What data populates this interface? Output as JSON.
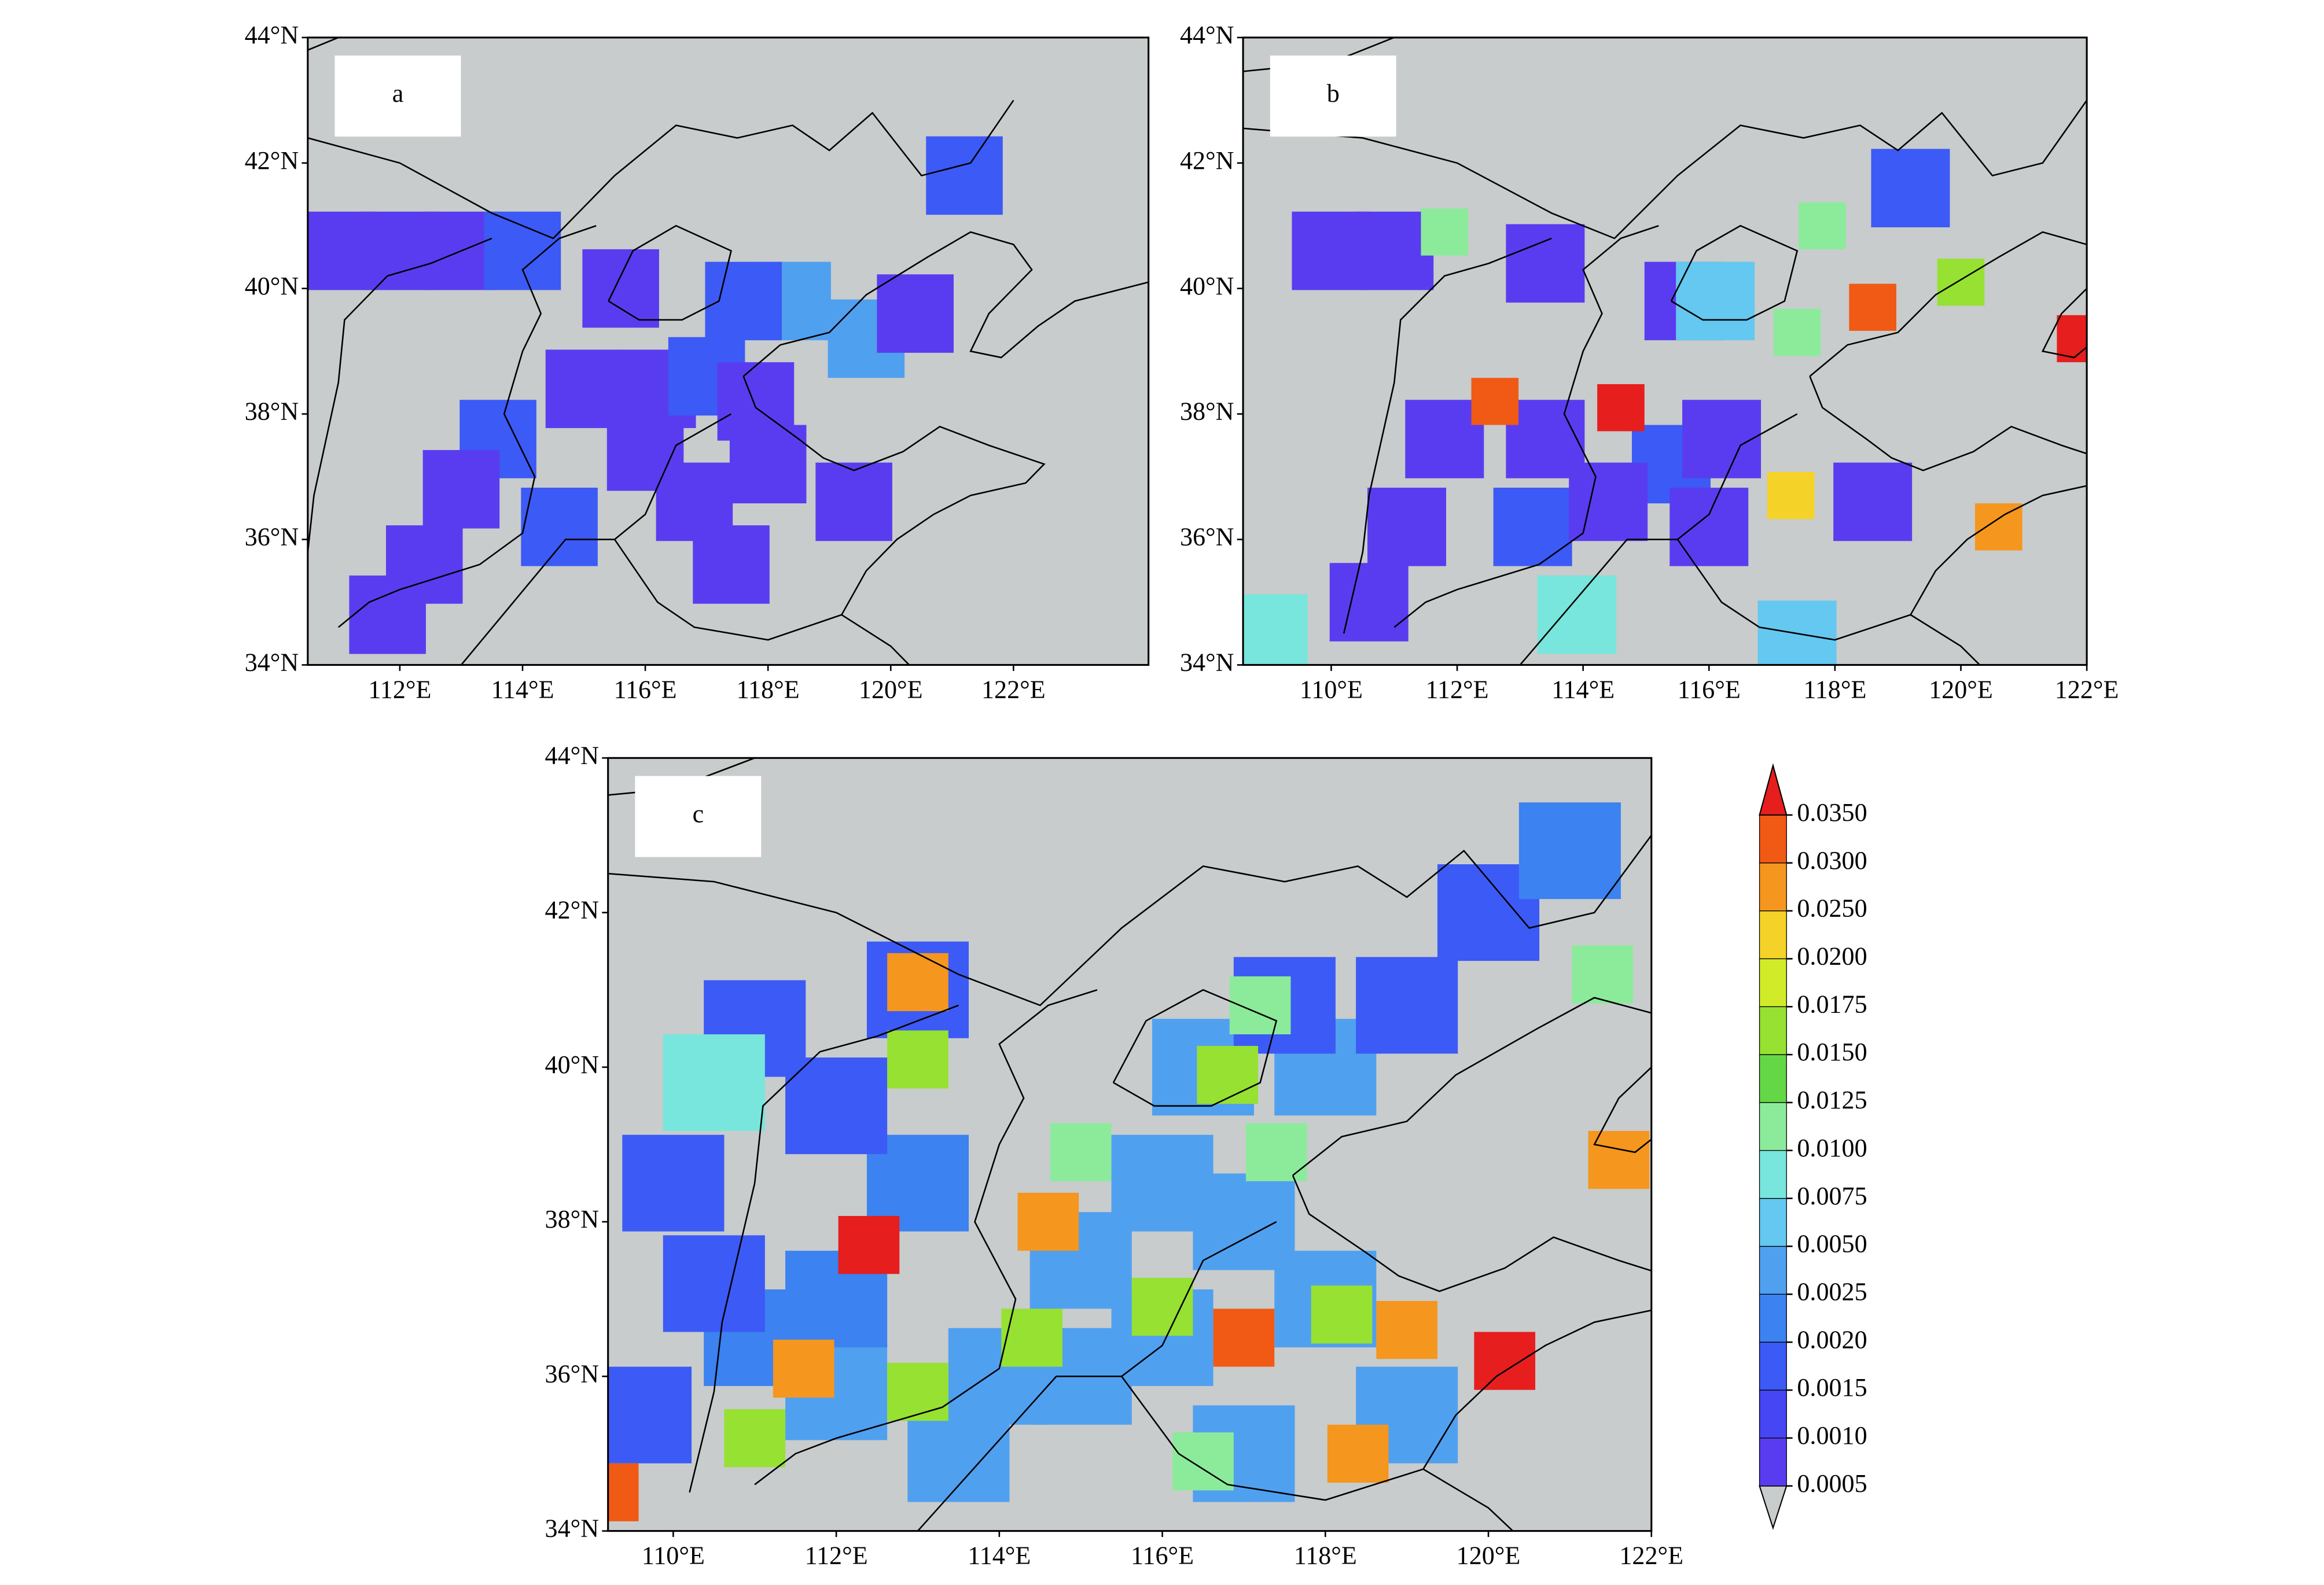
{
  "panels": [
    {
      "label": "a",
      "xlim": [
        110.5,
        124.2
      ],
      "ylim": [
        34,
        44
      ],
      "xticks": [
        {
          "value": 112,
          "label": "112°E"
        },
        {
          "value": 114,
          "label": "114°E"
        },
        {
          "value": 116,
          "label": "116°E"
        },
        {
          "value": 118,
          "label": "118°E"
        },
        {
          "value": 120,
          "label": "120°E"
        },
        {
          "value": 122,
          "label": "122°E"
        }
      ],
      "yticks": [
        {
          "value": 34,
          "label": "34°N"
        },
        {
          "value": 36,
          "label": "36°N"
        },
        {
          "value": 38,
          "label": "38°N"
        },
        {
          "value": 40,
          "label": "40°N"
        },
        {
          "value": 42,
          "label": "42°N"
        },
        {
          "value": 44,
          "label": "44°N"
        }
      ],
      "cells": [
        [
          111,
          40.6,
          0.0008
        ],
        [
          112,
          40.6,
          0.0008
        ],
        [
          113,
          40.6,
          0.0008
        ],
        [
          114,
          40.6,
          0.0015
        ],
        [
          115.6,
          40,
          0.0008
        ],
        [
          113.6,
          37.6,
          0.0015
        ],
        [
          113,
          36.8,
          0.0008
        ],
        [
          112.4,
          35.6,
          0.0008
        ],
        [
          111.8,
          34.8,
          0.0008
        ],
        [
          114.6,
          36.2,
          0.0015
        ],
        [
          116,
          37.4,
          0.0008
        ],
        [
          116.2,
          38.4,
          0.0008
        ],
        [
          117,
          38.6,
          0.0015
        ],
        [
          117.8,
          38.2,
          0.0008
        ],
        [
          116.8,
          36.6,
          0.0008
        ],
        [
          118,
          37.2,
          0.0008
        ],
        [
          119.4,
          36.6,
          0.0008
        ],
        [
          117.4,
          35.6,
          0.0008
        ],
        [
          118.4,
          39.8,
          0.004
        ],
        [
          117.6,
          39.8,
          0.0015
        ],
        [
          119.6,
          39.2,
          0.0025
        ],
        [
          120.4,
          39.6,
          0.0008
        ],
        [
          121.2,
          41.8,
          0.0015
        ],
        [
          115,
          38.4,
          0.0008
        ]
      ]
    },
    {
      "label": "b",
      "xlim": [
        108.6,
        122
      ],
      "ylim": [
        34,
        44
      ],
      "xticks": [
        {
          "value": 110,
          "label": "110°E"
        },
        {
          "value": 112,
          "label": "112°E"
        },
        {
          "value": 114,
          "label": "114°E"
        },
        {
          "value": 116,
          "label": "116°E"
        },
        {
          "value": 118,
          "label": "118°E"
        },
        {
          "value": 120,
          "label": "120°E"
        },
        {
          "value": 122,
          "label": "122°E"
        }
      ],
      "yticks": [
        {
          "value": 34,
          "label": "34°N"
        },
        {
          "value": 36,
          "label": "36°N"
        },
        {
          "value": 38,
          "label": "38°N"
        },
        {
          "value": 40,
          "label": "40°N"
        },
        {
          "value": 42,
          "label": "42°N"
        },
        {
          "value": 44,
          "label": "44°N"
        }
      ],
      "cells": [
        [
          110,
          40.6,
          0.0008
        ],
        [
          111,
          40.6,
          0.0008
        ],
        [
          113.4,
          40.4,
          0.0008
        ],
        [
          115.6,
          39.8,
          0.0008
        ],
        [
          111.8,
          37.6,
          0.0008
        ],
        [
          113.4,
          37.6,
          0.0008
        ],
        [
          111.2,
          36.2,
          0.0008
        ],
        [
          110.6,
          35,
          0.0008
        ],
        [
          113.2,
          36.2,
          0.0015
        ],
        [
          115.4,
          37.2,
          0.0015
        ],
        [
          114.4,
          36.6,
          0.0008
        ],
        [
          116.2,
          37.6,
          0.0008
        ],
        [
          118.6,
          36.6,
          0.0008
        ],
        [
          116,
          36.2,
          0.0008
        ],
        [
          119.2,
          41.6,
          0.0015
        ],
        [
          116.1,
          39.8,
          0.006
        ],
        [
          111.8,
          40.9,
          0.012
        ],
        [
          112.6,
          38.2,
          0.03
        ],
        [
          114.6,
          38.1,
          0.035
        ],
        [
          117.4,
          39.3,
          0.01
        ],
        [
          118.6,
          39.7,
          0.03
        ],
        [
          117.8,
          41,
          0.01
        ],
        [
          120,
          40.1,
          0.015
        ],
        [
          121.9,
          39.2,
          0.035
        ],
        [
          117.3,
          36.7,
          0.02
        ],
        [
          120.6,
          36.2,
          0.025
        ],
        [
          113.9,
          34.8,
          0.008
        ],
        [
          117.4,
          34.4,
          0.006
        ],
        [
          109,
          34.5,
          0.008
        ]
      ]
    },
    {
      "label": "c",
      "xlim": [
        109.2,
        122
      ],
      "ylim": [
        34,
        44
      ],
      "xticks": [
        {
          "value": 110,
          "label": "110°E"
        },
        {
          "value": 112,
          "label": "112°E"
        },
        {
          "value": 114,
          "label": "114°E"
        },
        {
          "value": 116,
          "label": "116°E"
        },
        {
          "value": 118,
          "label": "118°E"
        },
        {
          "value": 120,
          "label": "120°E"
        },
        {
          "value": 122,
          "label": "122°E"
        }
      ],
      "yticks": [
        {
          "value": 34,
          "label": "34°N"
        },
        {
          "value": 36,
          "label": "36°N"
        },
        {
          "value": 38,
          "label": "38°N"
        },
        {
          "value": 40,
          "label": "40°N"
        },
        {
          "value": 42,
          "label": "42°N"
        },
        {
          "value": 44,
          "label": "44°N"
        }
      ],
      "cells": [
        [
          114,
          36,
          0.004
        ],
        [
          115,
          36,
          0.004
        ],
        [
          116,
          36.5,
          0.004
        ],
        [
          115,
          37.5,
          0.004
        ],
        [
          116,
          38.5,
          0.004
        ],
        [
          117,
          38,
          0.004
        ],
        [
          118,
          37,
          0.004
        ],
        [
          117,
          35,
          0.004
        ],
        [
          119,
          35.5,
          0.004
        ],
        [
          113.5,
          35,
          0.004
        ],
        [
          112,
          35.8,
          0.003
        ],
        [
          111,
          36.5,
          0.002
        ],
        [
          112,
          37,
          0.002
        ],
        [
          113,
          38.5,
          0.002
        ],
        [
          112,
          39.5,
          0.0015
        ],
        [
          111,
          40.5,
          0.0015
        ],
        [
          113,
          41,
          0.0015
        ],
        [
          110,
          38.5,
          0.0015
        ],
        [
          110.5,
          37.2,
          0.0015
        ],
        [
          116.5,
          40,
          0.003
        ],
        [
          118,
          40,
          0.0025
        ],
        [
          117.5,
          40.8,
          0.0015
        ],
        [
          119,
          40.8,
          0.0015
        ],
        [
          120,
          42,
          0.0015
        ],
        [
          121,
          42.8,
          0.002
        ],
        [
          109.6,
          35.5,
          0.0015
        ],
        [
          110.5,
          39.8,
          0.008
        ],
        [
          113,
          41.1,
          0.025
        ],
        [
          113,
          40.1,
          0.015
        ],
        [
          112.4,
          37.7,
          0.035
        ],
        [
          111.6,
          36.1,
          0.028
        ],
        [
          114.6,
          38,
          0.025
        ],
        [
          116.8,
          39.9,
          0.017
        ],
        [
          114.4,
          36.5,
          0.015
        ],
        [
          113,
          35.8,
          0.015
        ],
        [
          111,
          35.2,
          0.016
        ],
        [
          117,
          36.5,
          0.03
        ],
        [
          118.2,
          36.8,
          0.015
        ],
        [
          119,
          36.6,
          0.028
        ],
        [
          120.2,
          36.2,
          0.035
        ],
        [
          118.4,
          35,
          0.028
        ],
        [
          116,
          36.9,
          0.015
        ],
        [
          121.6,
          38.8,
          0.025
        ],
        [
          109.2,
          34.5,
          0.033
        ],
        [
          117.4,
          38.9,
          0.012
        ],
        [
          115,
          38.9,
          0.01
        ],
        [
          117.2,
          40.8,
          0.012
        ],
        [
          121.4,
          41.2,
          0.012
        ],
        [
          116.5,
          34.9,
          0.012
        ]
      ]
    }
  ],
  "colorbar": {
    "ticks": [
      {
        "value": 0.0005,
        "label": "0.0005"
      },
      {
        "value": 0.001,
        "label": "0.0010"
      },
      {
        "value": 0.0015,
        "label": "0.0015"
      },
      {
        "value": 0.002,
        "label": "0.0020"
      },
      {
        "value": 0.0025,
        "label": "0.0025"
      },
      {
        "value": 0.005,
        "label": "0.0050"
      },
      {
        "value": 0.0075,
        "label": "0.0075"
      },
      {
        "value": 0.01,
        "label": "0.0100"
      },
      {
        "value": 0.0125,
        "label": "0.0125"
      },
      {
        "value": 0.015,
        "label": "0.0150"
      },
      {
        "value": 0.0175,
        "label": "0.0175"
      },
      {
        "value": 0.02,
        "label": "0.0200"
      },
      {
        "value": 0.025,
        "label": "0.0250"
      },
      {
        "value": 0.03,
        "label": "0.0300"
      },
      {
        "value": 0.035,
        "label": "0.0350"
      }
    ],
    "colors": [
      "#c8cccc",
      "#5a3cf0",
      "#4646f5",
      "#3c5af5",
      "#3c82f0",
      "#50a0f0",
      "#64c8f0",
      "#78e6dc",
      "#8ceb9b",
      "#64d746",
      "#96e132",
      "#d2eb28",
      "#f5d228",
      "#f5961e",
      "#f05a14",
      "#e61e1e"
    ]
  }
}
